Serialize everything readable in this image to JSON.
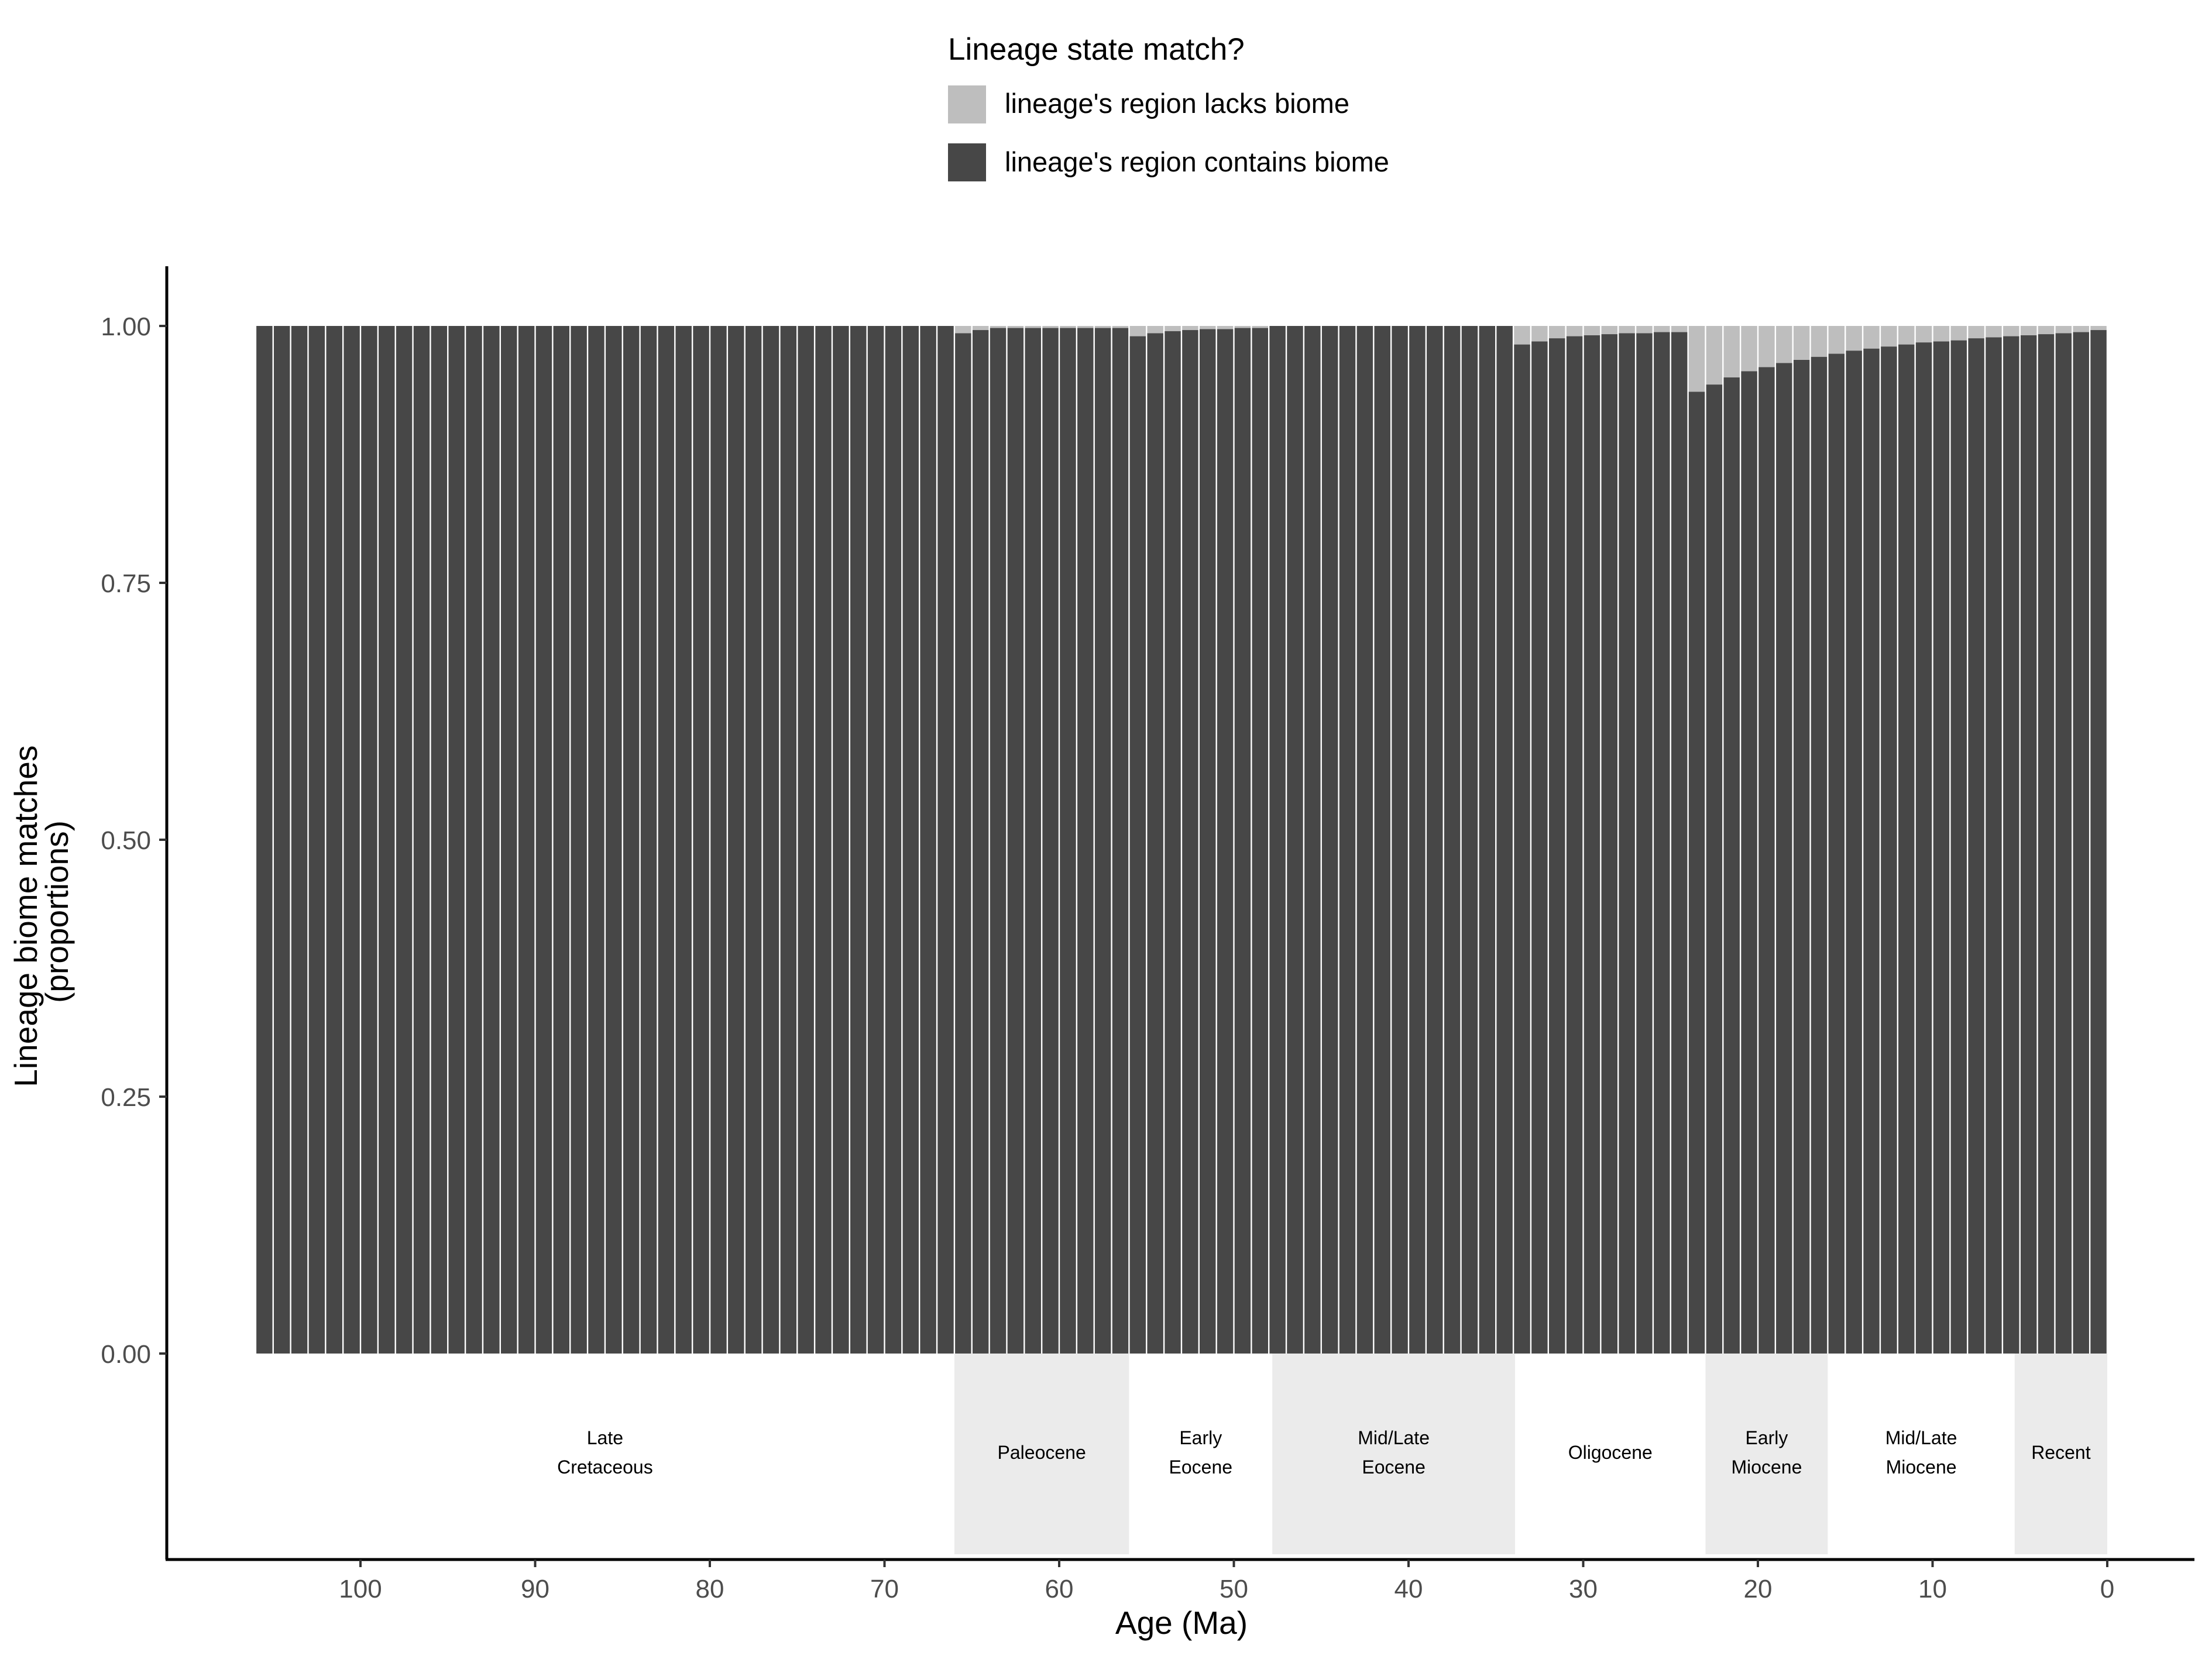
{
  "chart_data": {
    "type": "bar",
    "stacked": true,
    "xlabel": "Age (Ma)",
    "ylabel": [
      "Lineage biome matches",
      "(proportions)"
    ],
    "x_reversed": true,
    "xlim": [
      0,
      106
    ],
    "ylim": [
      0,
      1
    ],
    "xticks": [
      100,
      90,
      80,
      70,
      60,
      50,
      40,
      30,
      20,
      10,
      0
    ],
    "yticks": [
      "0.00",
      "0.25",
      "0.50",
      "0.75",
      "1.00"
    ],
    "bin_width_ma": 1,
    "grid": false,
    "legend": {
      "title": "Lineage state match?",
      "position": "top",
      "entries": [
        {
          "label": "lineage's region lacks biome",
          "color": "#bebebe"
        },
        {
          "label": "lineage's region contains biome",
          "color": "#474747"
        }
      ]
    },
    "colors": {
      "lacks": "#bebebe",
      "contains": "#474747",
      "epoch_band": "#ebebeb"
    },
    "series": [
      {
        "name": "lineage's region contains biome",
        "ages": [
          105,
          104,
          103,
          102,
          101,
          100,
          99,
          98,
          97,
          96,
          95,
          94,
          93,
          92,
          91,
          90,
          89,
          88,
          87,
          86,
          85,
          84,
          83,
          82,
          81,
          80,
          79,
          78,
          77,
          76,
          75,
          74,
          73,
          72,
          71,
          70,
          69,
          68,
          67,
          66,
          65,
          64,
          63,
          62,
          61,
          60,
          59,
          58,
          57,
          56,
          55,
          54,
          53,
          52,
          51,
          50,
          49,
          48,
          47,
          46,
          45,
          44,
          43,
          42,
          41,
          40,
          39,
          38,
          37,
          36,
          35,
          34,
          33,
          32,
          31,
          30,
          29,
          28,
          27,
          26,
          25,
          24,
          23,
          22,
          21,
          20,
          19,
          18,
          17,
          16,
          15,
          14,
          13,
          12,
          11,
          10,
          9,
          8,
          7,
          6,
          5,
          4,
          3,
          2,
          1,
          0
        ],
        "values": [
          1,
          1,
          1,
          1,
          1,
          1,
          1,
          1,
          1,
          1,
          1,
          1,
          1,
          1,
          1,
          1,
          1,
          1,
          1,
          1,
          1,
          1,
          1,
          1,
          1,
          1,
          1,
          1,
          1,
          1,
          1,
          1,
          1,
          1,
          1,
          1,
          1,
          1,
          1,
          1,
          0.993,
          0.996,
          0.998,
          0.998,
          0.998,
          0.998,
          0.998,
          0.998,
          0.998,
          0.998,
          0.99,
          0.993,
          0.995,
          0.996,
          0.997,
          0.997,
          0.998,
          0.998,
          1,
          1,
          1,
          1,
          1,
          1,
          1,
          1,
          1,
          1,
          1,
          1,
          1,
          1,
          0.982,
          0.985,
          0.988,
          0.99,
          0.991,
          0.992,
          0.993,
          0.993,
          0.994,
          0.994,
          0.936,
          0.943,
          0.95,
          0.956,
          0.96,
          0.964,
          0.967,
          0.97,
          0.973,
          0.976,
          0.978,
          0.98,
          0.982,
          0.984,
          0.985,
          0.986,
          0.988,
          0.989,
          0.99,
          0.991,
          0.992,
          0.993,
          0.994,
          0.996,
          0.998,
          1
        ]
      },
      {
        "name": "lineage's region lacks biome",
        "ages": [
          105,
          104,
          103,
          102,
          101,
          100,
          99,
          98,
          97,
          96,
          95,
          94,
          93,
          92,
          91,
          90,
          89,
          88,
          87,
          86,
          85,
          84,
          83,
          82,
          81,
          80,
          79,
          78,
          77,
          76,
          75,
          74,
          73,
          72,
          71,
          70,
          69,
          68,
          67,
          66,
          65,
          64,
          63,
          62,
          61,
          60,
          59,
          58,
          57,
          56,
          55,
          54,
          53,
          52,
          51,
          50,
          49,
          48,
          47,
          46,
          45,
          44,
          43,
          42,
          41,
          40,
          39,
          38,
          37,
          36,
          35,
          34,
          33,
          32,
          31,
          30,
          29,
          28,
          27,
          26,
          25,
          24,
          23,
          22,
          21,
          20,
          19,
          18,
          17,
          16,
          15,
          14,
          13,
          12,
          11,
          10,
          9,
          8,
          7,
          6,
          5,
          4,
          3,
          2,
          1,
          0
        ],
        "values": [
          0,
          0,
          0,
          0,
          0,
          0,
          0,
          0,
          0,
          0,
          0,
          0,
          0,
          0,
          0,
          0,
          0,
          0,
          0,
          0,
          0,
          0,
          0,
          0,
          0,
          0,
          0,
          0,
          0,
          0,
          0,
          0,
          0,
          0,
          0,
          0,
          0,
          0,
          0,
          0,
          0.007,
          0.004,
          0.002,
          0.002,
          0.002,
          0.002,
          0.002,
          0.002,
          0.002,
          0.002,
          0.01,
          0.007,
          0.005,
          0.004,
          0.003,
          0.003,
          0.002,
          0.002,
          0,
          0,
          0,
          0,
          0,
          0,
          0,
          0,
          0,
          0,
          0,
          0,
          0,
          0,
          0.018,
          0.015,
          0.012,
          0.01,
          0.009,
          0.008,
          0.007,
          0.007,
          0.006,
          0.006,
          0.064,
          0.057,
          0.05,
          0.044,
          0.04,
          0.036,
          0.033,
          0.03,
          0.027,
          0.024,
          0.022,
          0.02,
          0.018,
          0.016,
          0.015,
          0.014,
          0.012,
          0.011,
          0.01,
          0.009,
          0.008,
          0.007,
          0.006,
          0.004,
          0.002,
          0
        ]
      }
    ],
    "epochs": [
      {
        "lines": [
          "Late",
          "Cretaceous"
        ],
        "start": 106,
        "end": 66,
        "shaded": false
      },
      {
        "lines": [
          "Paleocene"
        ],
        "start": 66,
        "end": 56,
        "shaded": true
      },
      {
        "lines": [
          "Early",
          "Eocene"
        ],
        "start": 56,
        "end": 47.8,
        "shaded": false
      },
      {
        "lines": [
          "Mid/Late",
          "Eocene"
        ],
        "start": 47.8,
        "end": 33.9,
        "shaded": true
      },
      {
        "lines": [
          "Oligocene"
        ],
        "start": 33.9,
        "end": 23,
        "shaded": false
      },
      {
        "lines": [
          "Early",
          "Miocene"
        ],
        "start": 23,
        "end": 16,
        "shaded": true
      },
      {
        "lines": [
          "Mid/Late",
          "Miocene"
        ],
        "start": 16,
        "end": 5.3,
        "shaded": false
      },
      {
        "lines": [
          "Recent"
        ],
        "start": 5.3,
        "end": 0,
        "shaded": true
      }
    ]
  }
}
